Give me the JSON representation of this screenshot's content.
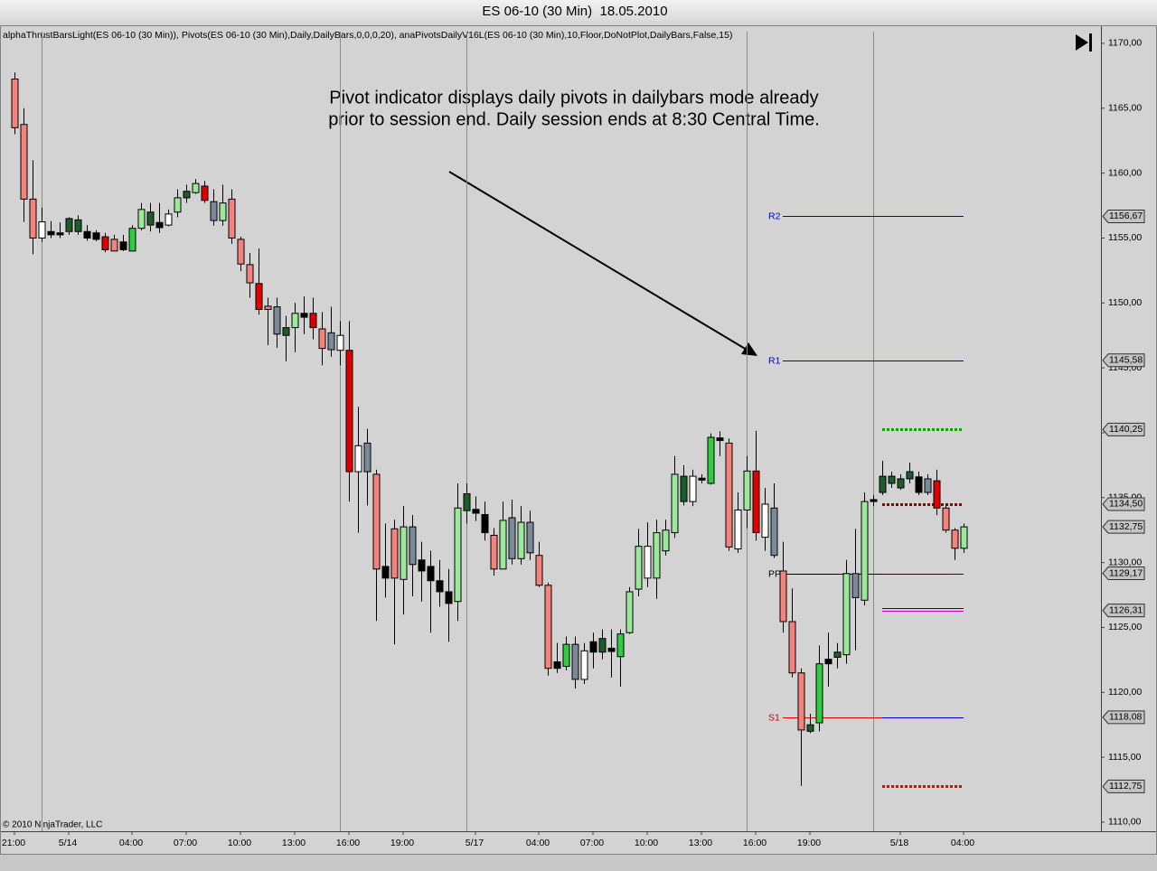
{
  "chart_data": {
    "type": "candlestick",
    "title": "ES 06-10 (30 Min)  18.05.2010",
    "indicators": "alphaThrustBarsLight(ES 06-10 (30 Min)), Pivots(ES 06-10 (30 Min),Daily,DailyBars,0,0,0,20), anaPivotsDailyV16L(ES 06-10 (30 Min),10,Floor,DoNotPlot,DailyBars,False,15)",
    "annotation": [
      "Pivot indicator displays daily pivots in dailybars mode already",
      "prior to session end. Daily session ends at 8:30 Central Time."
    ],
    "copyright": "© 2010 NinjaTrader, LLC",
    "xlim": [
      -1.3,
      120.2
    ],
    "ylim": [
      1109.3,
      1171.25
    ],
    "yticks": [
      {
        "value": 1110,
        "label": "1110,00"
      },
      {
        "value": 1115,
        "label": "1115,00"
      },
      {
        "value": 1120,
        "label": "1120,00"
      },
      {
        "value": 1125,
        "label": "1125,00"
      },
      {
        "value": 1130,
        "label": "1130,00"
      },
      {
        "value": 1135,
        "label": "1135,00"
      },
      {
        "value": 1140,
        "label": "1140,00"
      },
      {
        "value": 1145,
        "label": "1145,00"
      },
      {
        "value": 1150,
        "label": "1150,00"
      },
      {
        "value": 1155,
        "label": "1155,00"
      },
      {
        "value": 1160,
        "label": "1160,00"
      },
      {
        "value": 1165,
        "label": "1165,00"
      },
      {
        "value": 1170,
        "label": "1170,00"
      }
    ],
    "xticks": [
      {
        "value": 0,
        "label": "21:00"
      },
      {
        "value": 6,
        "label": "5/14"
      },
      {
        "value": 13,
        "label": "04:00"
      },
      {
        "value": 19,
        "label": "07:00"
      },
      {
        "value": 25,
        "label": "10:00"
      },
      {
        "value": 31,
        "label": "13:00"
      },
      {
        "value": 37,
        "label": "16:00"
      },
      {
        "value": 43,
        "label": "19:00"
      },
      {
        "value": 51,
        "label": "5/17"
      },
      {
        "value": 58,
        "label": "04:00"
      },
      {
        "value": 64,
        "label": "07:00"
      },
      {
        "value": 70,
        "label": "10:00"
      },
      {
        "value": 76,
        "label": "13:00"
      },
      {
        "value": 82,
        "label": "16:00"
      },
      {
        "value": 88,
        "label": "19:00"
      },
      {
        "value": 98,
        "label": "5/18"
      },
      {
        "value": 105,
        "label": "04:00"
      }
    ],
    "session_breaks": [
      3,
      36,
      50,
      81,
      95
    ],
    "open": [
      1167.25,
      1163.75,
      1158,
      1155,
      1155.5,
      1155.4,
      1155.5,
      1155.5,
      1155.5,
      1155.4,
      1155.1,
      1154.9,
      1154.7,
      1154,
      1155.75,
      1156,
      1156.2,
      1156,
      1157,
      1158.1,
      1158.5,
      1159,
      1157.8,
      1156.35,
      1158,
      1154.9,
      1152.95,
      1151.5,
      1149.75,
      1149.7,
      1147.5,
      1148.1,
      1149.2,
      1149.2,
      1148,
      1147.7,
      1146.35,
      1146.35,
      1137,
      1139.2,
      1136.8,
      1129.7,
      1132.6,
      1128.7,
      1132.75,
      1130.2,
      1129.7,
      1128.6,
      1127.75,
      1127,
      1134,
      1134.1,
      1133.7,
      1132.1,
      1129.5,
      1133.45,
      1130.3,
      1133.1,
      1130.55,
      1128.25,
      1122.35,
      1122,
      1123.7,
      1121,
      1123.9,
      1123.1,
      1123.4,
      1122.75,
      1124.6,
      1127.95,
      1128.8,
      1128.8,
      1130.9,
      1132.3,
      1134.7,
      1134.7,
      1136.5,
      1136.1,
      1139.6,
      1139.2,
      1131.05,
      1134.05,
      1137.05,
      1131.95,
      1134.2,
      1129.35,
      1125.45,
      1121.5,
      1117,
      1117.65,
      1122.55,
      1122.7,
      1122.9,
      1129.15,
      1127.1,
      1134.85,
      1135.4,
      1136.1,
      1135.75,
      1136.45,
      1136.6,
      1136.45,
      1136.3,
      1134.2,
      1132.5,
      1131.1
    ],
    "high": [
      1167.75,
      1165,
      1161,
      1157.35,
      1156.3,
      1156.2,
      1156.6,
      1156.75,
      1156,
      1155.6,
      1155.4,
      1155.25,
      1155.25,
      1156,
      1157.7,
      1157.7,
      1157.7,
      1157.2,
      1158.75,
      1159.1,
      1159.55,
      1159.4,
      1158.75,
      1159.1,
      1158.75,
      1155.1,
      1153.85,
      1154.2,
      1150.4,
      1150.4,
      1149,
      1150,
      1150.5,
      1150.4,
      1149.3,
      1149.7,
      1148.6,
      1148.6,
      1142,
      1140.3,
      1137.15,
      1133,
      1133.3,
      1134.35,
      1133.65,
      1131.6,
      1130.9,
      1130.2,
      1129.5,
      1136.1,
      1136.1,
      1135.1,
      1134.7,
      1132.65,
      1134.7,
      1134.85,
      1134.35,
      1134,
      1131.6,
      1128.45,
      1123.8,
      1124.3,
      1124.3,
      1123.8,
      1124.6,
      1124.85,
      1124.85,
      1124.85,
      1128.1,
      1132.6,
      1133.1,
      1133.3,
      1133.3,
      1138.2,
      1137.5,
      1137.15,
      1136.8,
      1139.95,
      1140.1,
      1139.55,
      1135.4,
      1138.2,
      1140.15,
      1135.75,
      1136.1,
      1131.6,
      1128,
      1121.85,
      1118.35,
      1123.6,
      1124.6,
      1123.8,
      1130.2,
      1132.6,
      1135.4,
      1135.2,
      1137.85,
      1137,
      1136.8,
      1137.7,
      1137,
      1136.8,
      1137.15,
      1134.5,
      1132.65,
      1133
    ],
    "low": [
      1163,
      1156.25,
      1153.75,
      1154.7,
      1155,
      1155,
      1155.25,
      1155.25,
      1154.8,
      1154.75,
      1153.9,
      1154,
      1154,
      1154,
      1155.6,
      1155.5,
      1155.4,
      1155.9,
      1156.6,
      1157.7,
      1158.4,
      1157.7,
      1155.95,
      1155.95,
      1154.55,
      1152.45,
      1150.4,
      1149.1,
      1146.75,
      1146.55,
      1145.5,
      1146.2,
      1147.6,
      1147.2,
      1145.2,
      1145.85,
      1145.2,
      1134.7,
      1132.3,
      1134.4,
      1125.5,
      1127.3,
      1123.7,
      1126,
      1127.4,
      1127,
      1124.6,
      1126.6,
      1123.9,
      1125.5,
      1133,
      1133.2,
      1131.7,
      1129,
      1129.5,
      1129.85,
      1129.85,
      1130.2,
      1128.1,
      1121.3,
      1121.5,
      1121.7,
      1120.3,
      1120.65,
      1121.85,
      1122.55,
      1121.15,
      1120.45,
      1124.5,
      1127.4,
      1128.1,
      1127.2,
      1130.55,
      1131.9,
      1134.4,
      1134.35,
      1136.1,
      1136,
      1138.2,
      1130.9,
      1130.75,
      1132.65,
      1131.7,
      1130.9,
      1130.35,
      1124.6,
      1121.15,
      1112.8,
      1116.85,
      1117,
      1120.45,
      1121.85,
      1122.2,
      1123.25,
      1126.7,
      1134.35,
      1135.2,
      1135.75,
      1135.6,
      1136.1,
      1135.2,
      1135.2,
      1133.65,
      1132.3,
      1130.2,
      1130.75
    ],
    "close": [
      1163.5,
      1158,
      1155,
      1156.25,
      1155.25,
      1155.25,
      1156.5,
      1156.4,
      1155,
      1154.9,
      1154.1,
      1154,
      1154.1,
      1155.75,
      1157.2,
      1157,
      1155.8,
      1156.85,
      1158.1,
      1158.6,
      1159.2,
      1157.9,
      1156.35,
      1157.7,
      1155,
      1153,
      1151.55,
      1149.5,
      1149.5,
      1147.6,
      1148.1,
      1149.2,
      1148.9,
      1148.1,
      1146.5,
      1146.4,
      1147.5,
      1137,
      1139,
      1137,
      1129.5,
      1128.8,
      1128.8,
      1132.75,
      1129.85,
      1129.35,
      1128.6,
      1127.75,
      1126.85,
      1134.2,
      1135.3,
      1133.8,
      1132.3,
      1129.5,
      1133.25,
      1130.3,
      1133.1,
      1130.75,
      1128.25,
      1121.85,
      1121.85,
      1123.7,
      1121,
      1123.2,
      1123.1,
      1124.15,
      1123.15,
      1124.5,
      1127.75,
      1131.25,
      1131.25,
      1132.3,
      1132.5,
      1136.8,
      1136.65,
      1136.65,
      1136.35,
      1139.65,
      1139.4,
      1131.2,
      1134.05,
      1137.05,
      1132.3,
      1134.5,
      1130.55,
      1125.45,
      1121.5,
      1117.1,
      1117.5,
      1122.2,
      1122.2,
      1123.1,
      1129.15,
      1127.3,
      1134.7,
      1134.7,
      1136.65,
      1136.65,
      1136.45,
      1137,
      1135.4,
      1135.4,
      1134.2,
      1132.5,
      1131.1,
      1132.75
    ],
    "colors": [
      "#f4837d",
      "#f4837d",
      "#f4837d",
      "#ffffff",
      "#000000",
      "#000000",
      "#1f5c2c",
      "#1f5c2c",
      "#000000",
      "#000000",
      "#e00000",
      "#f4837d",
      "#000000",
      "#2ecc40",
      "#9be89b",
      "#1f5c2c",
      "#000000",
      "#ffffff",
      "#9be89b",
      "#1f5c2c",
      "#9be89b",
      "#e00000",
      "#7b8a99",
      "#9be89b",
      "#f4837d",
      "#f4837d",
      "#f4837d",
      "#e00000",
      "#f4837d",
      "#7b8a99",
      "#1f5c2c",
      "#9be89b",
      "#000000",
      "#e00000",
      "#f4837d",
      "#7b8a99",
      "#ffffff",
      "#e00000",
      "#ffffff",
      "#7b8a99",
      "#f4837d",
      "#000000",
      "#f4837d",
      "#9be89b",
      "#7b8a99",
      "#000000",
      "#000000",
      "#000000",
      "#000000",
      "#9be89b",
      "#1f5c2c",
      "#000000",
      "#000000",
      "#f4837d",
      "#9be89b",
      "#7b8a99",
      "#9be89b",
      "#7b8a99",
      "#f4837d",
      "#f4837d",
      "#000000",
      "#2ecc40",
      "#7b8a99",
      "#ffffff",
      "#000000",
      "#1f5c2c",
      "#000000",
      "#2ecc40",
      "#9be89b",
      "#9be89b",
      "#ffffff",
      "#9be89b",
      "#9be89b",
      "#9be89b",
      "#1f5c2c",
      "#ffffff",
      "#000000",
      "#2ecc40",
      "#000000",
      "#f4837d",
      "#ffffff",
      "#9be89b",
      "#e00000",
      "#ffffff",
      "#7b8a99",
      "#f4837d",
      "#f4837d",
      "#f4837d",
      "#1f5c2c",
      "#2ecc40",
      "#000000",
      "#1f5c2c",
      "#9be89b",
      "#7b8a99",
      "#9be89b",
      "#000000",
      "#1f5c2c",
      "#1f5c2c",
      "#1f5c2c",
      "#1f5c2c",
      "#000000",
      "#7b8a99",
      "#e00000",
      "#f4837d",
      "#f4837d",
      "#9be89b"
    ],
    "levels": [
      {
        "name": "R2",
        "value": 1156.67,
        "label": "1156,67",
        "color": "#0000cc",
        "from": 85,
        "to": 105
      },
      {
        "name": "R1",
        "value": 1145.58,
        "label": "1145,58",
        "color": "#0000cc",
        "from": 85,
        "to": 105
      },
      {
        "name": "PP",
        "value": 1129.17,
        "label": "1129,17",
        "color": "#000000",
        "from": 85,
        "to": 96
      },
      {
        "value": 1129.17,
        "color": "#0000cc",
        "from": 96,
        "to": 105
      },
      {
        "name": "S1",
        "value": 1118.08,
        "label": "1118,08",
        "color": "#dd0000",
        "from": 85,
        "to": 96
      },
      {
        "value": 1118.08,
        "color": "#0000cc",
        "from": 96,
        "to": 105
      },
      {
        "value": 1140.25,
        "label": "1140,25",
        "color": "#00aa00",
        "from": 96,
        "to": 105,
        "dotted": true
      },
      {
        "value": 1134.5,
        "label": "1134,50",
        "color": "#8b0000",
        "from": 96,
        "to": 105,
        "dotted": true
      },
      {
        "value": 1126.5,
        "color": "#0000cc",
        "from": 96,
        "to": 105
      },
      {
        "value": 1126.31,
        "label": "1126,31",
        "color": "#cc00cc",
        "from": 96,
        "to": 105
      },
      {
        "value": 1112.75,
        "label": "1112,75",
        "color": "#ee0000",
        "from": 96,
        "to": 105,
        "dotted": true
      }
    ],
    "last_price": {
      "value": 1132.75,
      "label": "1132,75"
    }
  }
}
